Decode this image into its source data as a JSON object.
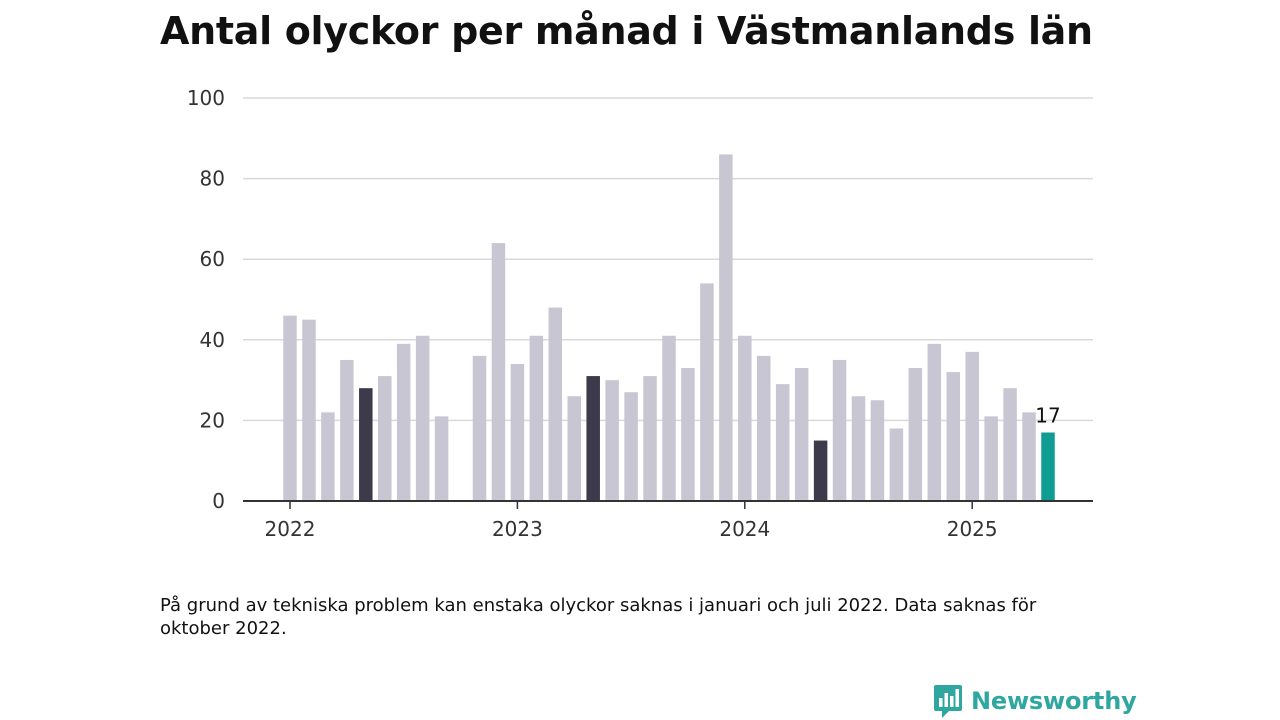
{
  "title": "Antal olyckor per månad i Västmanlands län",
  "note": "På grund av tekniska problem kan enstaka olyckor saknas i januari och juli 2022. Data saknas för oktober 2022.",
  "brand": {
    "name": "Newsworthy",
    "icon": "newsworthy-logo-icon"
  },
  "colors": {
    "bar_default": "#c8c6d3",
    "bar_may": "#3d3b4b",
    "bar_latest": "#0e9c93",
    "grid": "#d9d9d9",
    "axis": "#333333",
    "brand": "#2fa7a0"
  },
  "chart_data": {
    "type": "bar",
    "title": "Antal olyckor per månad i Västmanlands län",
    "xlabel": "",
    "ylabel": "",
    "ylim": [
      0,
      100
    ],
    "yticks": [
      "0",
      "20",
      "40",
      "60",
      "80",
      "100"
    ],
    "xticks": [
      "2022",
      "2023",
      "2024",
      "2025"
    ],
    "grid": true,
    "categories": [
      "2022-01",
      "2022-02",
      "2022-03",
      "2022-04",
      "2022-05",
      "2022-06",
      "2022-07",
      "2022-08",
      "2022-09",
      "2022-10",
      "2022-11",
      "2022-12",
      "2023-01",
      "2023-02",
      "2023-03",
      "2023-04",
      "2023-05",
      "2023-06",
      "2023-07",
      "2023-08",
      "2023-09",
      "2023-10",
      "2023-11",
      "2023-12",
      "2024-01",
      "2024-02",
      "2024-03",
      "2024-04",
      "2024-05",
      "2024-06",
      "2024-07",
      "2024-08",
      "2024-09",
      "2024-10",
      "2024-11",
      "2024-12",
      "2025-01",
      "2025-02",
      "2025-03",
      "2025-04",
      "2025-05"
    ],
    "values": [
      46,
      45,
      22,
      35,
      28,
      31,
      39,
      41,
      21,
      null,
      36,
      64,
      34,
      41,
      48,
      26,
      31,
      30,
      27,
      31,
      41,
      33,
      54,
      86,
      41,
      36,
      29,
      33,
      15,
      35,
      26,
      25,
      18,
      33,
      39,
      32,
      37,
      21,
      28,
      22,
      17
    ],
    "highlight_months": [
      "2022-05",
      "2023-05",
      "2024-05"
    ],
    "latest": {
      "category": "2025-05",
      "value": 17,
      "label": "17"
    }
  }
}
